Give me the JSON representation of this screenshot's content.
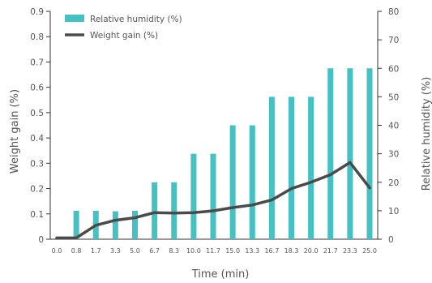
{
  "chart_data": {
    "type": "bar+line",
    "x": [
      "0.0",
      "0.8",
      "1.7",
      "3.3",
      "5.0",
      "6.7",
      "8.3",
      "10.0",
      "11.7",
      "15.0",
      "13.3",
      "16.7",
      "18.3",
      "20.0",
      "21.7",
      "23.3",
      "25.0"
    ],
    "xlabel": "Time (min)",
    "ylabel_left": "Weight gain (%)",
    "ylabel_right": "Relative humidity (%)",
    "ylim_left": [
      0,
      0.9
    ],
    "ylim_right": [
      0,
      80
    ],
    "yticks_left": [
      "0",
      "0.1",
      "0.2",
      "0.3",
      "0.4",
      "0.5",
      "0.6",
      "0.7",
      "0.8",
      "0.9"
    ],
    "yticks_right": [
      "0",
      "10",
      "20",
      "30",
      "40",
      "50",
      "60",
      "70",
      "80"
    ],
    "legend_position": "top-left",
    "grid": false,
    "series": [
      {
        "name": "Relative humidity (%)",
        "kind": "bar",
        "axis": "right",
        "color": "#45c1c4",
        "values": [
          0,
          10,
          10,
          9.8,
          10,
          20,
          20,
          30,
          30,
          40,
          40,
          50,
          50,
          50,
          60,
          60,
          60
        ]
      },
      {
        "name": "Weight gain (%)",
        "kind": "line",
        "axis": "left",
        "color": "#4a4a4a",
        "values": [
          0.005,
          0.005,
          0.055,
          0.075,
          0.085,
          0.105,
          0.103,
          0.105,
          0.112,
          0.125,
          0.135,
          0.155,
          0.2,
          0.225,
          0.255,
          0.303,
          0.203
        ]
      }
    ]
  }
}
